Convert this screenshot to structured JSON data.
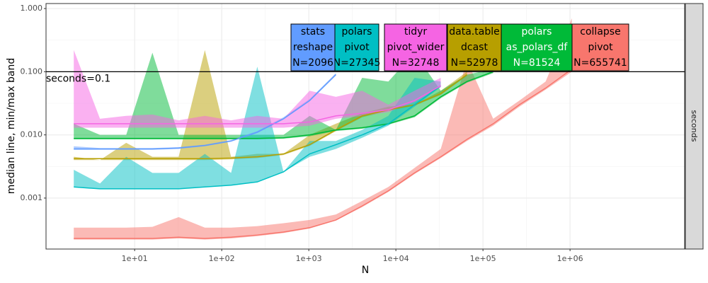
{
  "chart_data": {
    "type": "band-line",
    "x_label": "N",
    "y_label": "median line, min/max band",
    "facet_label": "seconds",
    "xlog": true,
    "ylog": true,
    "grid": true,
    "xlim": [
      0.96,
      20700000
    ],
    "ylim": [
      0.000156,
      1.2
    ],
    "xticks": [
      {
        "value": 10,
        "label": "1e+01"
      },
      {
        "value": 100,
        "label": "1e+02"
      },
      {
        "value": 1000,
        "label": "1e+03"
      },
      {
        "value": 10000,
        "label": "1e+04"
      },
      {
        "value": 100000,
        "label": "1e+05"
      },
      {
        "value": 1000000,
        "label": "1e+06"
      }
    ],
    "yticks": [
      {
        "value": 0.001,
        "label": "0.001"
      },
      {
        "value": 0.01,
        "label": "0.010"
      },
      {
        "value": 0.1,
        "label": "0.100"
      },
      {
        "value": 1,
        "label": "1.000"
      }
    ],
    "hline": {
      "value": 0.1,
      "label": "seconds=0.1"
    },
    "series": [
      {
        "label": [
          "collapse",
          "pivot",
          "N=655741"
        ],
        "color": "#F8766D",
        "label_color": "#000000",
        "x": [
          2,
          4,
          8,
          16,
          32,
          64,
          128,
          256,
          512,
          1024,
          2048,
          4096,
          8192,
          16384,
          32768,
          65536,
          131072,
          262144,
          524288,
          1048576
        ],
        "median": [
          0.00023,
          0.00023,
          0.00023,
          0.00023,
          0.00024,
          0.00023,
          0.00024,
          0.00026,
          0.00029,
          0.00034,
          0.00045,
          0.00075,
          0.0013,
          0.0025,
          0.0045,
          0.0085,
          0.015,
          0.03,
          0.055,
          0.11
        ],
        "min": [
          0.00022,
          0.00022,
          0.00022,
          0.00022,
          0.00023,
          0.00022,
          0.00023,
          0.00025,
          0.00028,
          0.00033,
          0.00044,
          0.00072,
          0.00125,
          0.0024,
          0.0043,
          0.008,
          0.014,
          0.028,
          0.052,
          0.1
        ],
        "max": [
          0.00034,
          0.00034,
          0.00034,
          0.00035,
          0.0005,
          0.00034,
          0.00034,
          0.00036,
          0.0004,
          0.00045,
          0.00055,
          0.0009,
          0.0015,
          0.003,
          0.006,
          0.15,
          0.018,
          0.035,
          0.07,
          0.7
        ]
      },
      {
        "label": [
          "data.table",
          "dcast",
          "N=52978"
        ],
        "color": "#B79F00",
        "label_color": "#000000",
        "x": [
          2,
          4,
          8,
          16,
          32,
          64,
          128,
          256,
          512,
          1024,
          2048,
          4096,
          8192,
          16384,
          32768,
          65536
        ],
        "median": [
          0.0042,
          0.0042,
          0.0042,
          0.0042,
          0.0042,
          0.0042,
          0.0043,
          0.0045,
          0.005,
          0.007,
          0.012,
          0.02,
          0.025,
          0.03,
          0.045,
          0.09
        ],
        "min": [
          0.004,
          0.004,
          0.004,
          0.004,
          0.004,
          0.004,
          0.0041,
          0.0043,
          0.0048,
          0.0067,
          0.0115,
          0.019,
          0.024,
          0.029,
          0.043,
          0.086
        ],
        "max": [
          0.0045,
          0.004,
          0.0075,
          0.0045,
          0.0045,
          0.22,
          0.0045,
          0.005,
          0.005,
          0.01,
          0.015,
          0.022,
          0.028,
          0.03,
          0.05,
          0.1
        ]
      },
      {
        "label": [
          "polars",
          "as_polars_df",
          "N=81524"
        ],
        "color": "#00BA38",
        "label_color": "#ffffff",
        "x": [
          2,
          4,
          8,
          16,
          32,
          64,
          128,
          256,
          512,
          1024,
          2048,
          4096,
          8192,
          16384,
          32768,
          65536,
          131072
        ],
        "median": [
          0.0088,
          0.0088,
          0.0088,
          0.0088,
          0.0088,
          0.0088,
          0.0088,
          0.0088,
          0.009,
          0.01,
          0.012,
          0.013,
          0.015,
          0.02,
          0.04,
          0.07,
          0.1
        ],
        "min": [
          0.0085,
          0.0085,
          0.0085,
          0.0085,
          0.0085,
          0.0085,
          0.0085,
          0.0085,
          0.0087,
          0.0095,
          0.0115,
          0.0125,
          0.0145,
          0.019,
          0.038,
          0.067,
          0.095
        ],
        "max": [
          0.015,
          0.01,
          0.01,
          0.2,
          0.01,
          0.01,
          0.01,
          0.01,
          0.01,
          0.02,
          0.012,
          0.08,
          0.07,
          0.2,
          0.05,
          0.09,
          0.11
        ]
      },
      {
        "label": [
          "polars",
          "pivot",
          "N=27345"
        ],
        "color": "#00BFC4",
        "label_color": "#000000",
        "x": [
          2,
          4,
          8,
          16,
          32,
          64,
          128,
          256,
          512,
          1024,
          2048,
          4096,
          8192,
          16384,
          32768
        ],
        "median": [
          0.0015,
          0.0014,
          0.0014,
          0.0014,
          0.0014,
          0.0015,
          0.0016,
          0.0018,
          0.0026,
          0.005,
          0.007,
          0.01,
          0.015,
          0.03,
          0.06
        ],
        "min": [
          0.0015,
          0.0014,
          0.0014,
          0.0014,
          0.0014,
          0.0015,
          0.0016,
          0.0018,
          0.0026,
          0.0045,
          0.006,
          0.009,
          0.014,
          0.028,
          0.057
        ],
        "max": [
          0.0028,
          0.0017,
          0.0045,
          0.0025,
          0.0025,
          0.005,
          0.0025,
          0.12,
          0.0026,
          0.008,
          0.008,
          0.012,
          0.02,
          0.08,
          0.07
        ]
      },
      {
        "label": [
          "stats",
          "reshape",
          "N=2096"
        ],
        "color": "#619CFF",
        "label_color": "#000000",
        "x": [
          2,
          4,
          8,
          16,
          32,
          64,
          128,
          256,
          512,
          1024,
          2048
        ],
        "median": [
          0.006,
          0.006,
          0.006,
          0.006,
          0.0062,
          0.0068,
          0.008,
          0.011,
          0.018,
          0.035,
          0.09
        ],
        "min": [
          0.0058,
          0.0058,
          0.0058,
          0.0058,
          0.006,
          0.0066,
          0.0078,
          0.0107,
          0.0175,
          0.034,
          0.087
        ],
        "max": [
          0.0066,
          0.0062,
          0.0062,
          0.0062,
          0.0064,
          0.007,
          0.0083,
          0.0115,
          0.019,
          0.037,
          0.095
        ]
      },
      {
        "label": [
          "tidyr",
          "pivot_wider",
          "N=32748"
        ],
        "color": "#F564E3",
        "label_color": "#000000",
        "x": [
          2,
          4,
          8,
          16,
          32,
          64,
          128,
          256,
          512,
          1024,
          2048,
          4096,
          8192,
          16384,
          32768
        ],
        "median": [
          0.015,
          0.015,
          0.015,
          0.015,
          0.015,
          0.015,
          0.015,
          0.015,
          0.015,
          0.016,
          0.02,
          0.022,
          0.025,
          0.035,
          0.06
        ],
        "min": [
          0.013,
          0.013,
          0.013,
          0.013,
          0.013,
          0.013,
          0.013,
          0.013,
          0.013,
          0.014,
          0.018,
          0.02,
          0.023,
          0.033,
          0.057
        ],
        "max": [
          0.22,
          0.018,
          0.02,
          0.021,
          0.017,
          0.02,
          0.017,
          0.02,
          0.018,
          0.05,
          0.04,
          0.05,
          0.03,
          0.05,
          0.08
        ]
      }
    ]
  }
}
